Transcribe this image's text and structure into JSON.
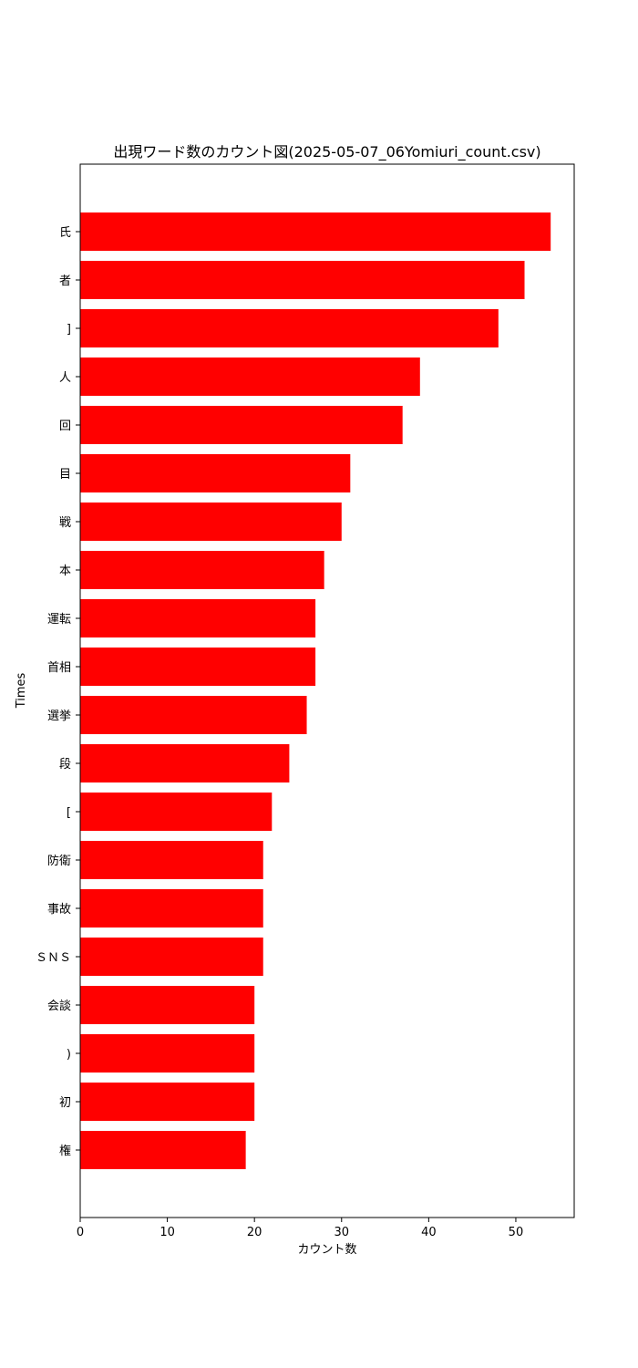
{
  "chart_data": {
    "type": "bar",
    "orientation": "horizontal",
    "title": "出現ワード数のカウント図(2025-05-07_06Yomiuri_count.csv)",
    "xlabel": "カウント数",
    "ylabel": "Times",
    "categories": [
      "氏",
      "者",
      "]",
      "人",
      "回",
      "目",
      "戦",
      "本",
      "運転",
      "首相",
      "選挙",
      "段",
      "[",
      "防衛",
      "事故",
      "ＳＮＳ",
      "会談",
      ")",
      "初",
      "権"
    ],
    "values": [
      54,
      51,
      48,
      39,
      37,
      31,
      30,
      28,
      27,
      27,
      26,
      24,
      22,
      21,
      21,
      21,
      20,
      20,
      20,
      19
    ],
    "xlim": [
      0,
      56.7
    ],
    "xticks": [
      0,
      10,
      20,
      30,
      40,
      50
    ],
    "bar_color": "#ff0000",
    "grid": false,
    "legend": "none"
  }
}
